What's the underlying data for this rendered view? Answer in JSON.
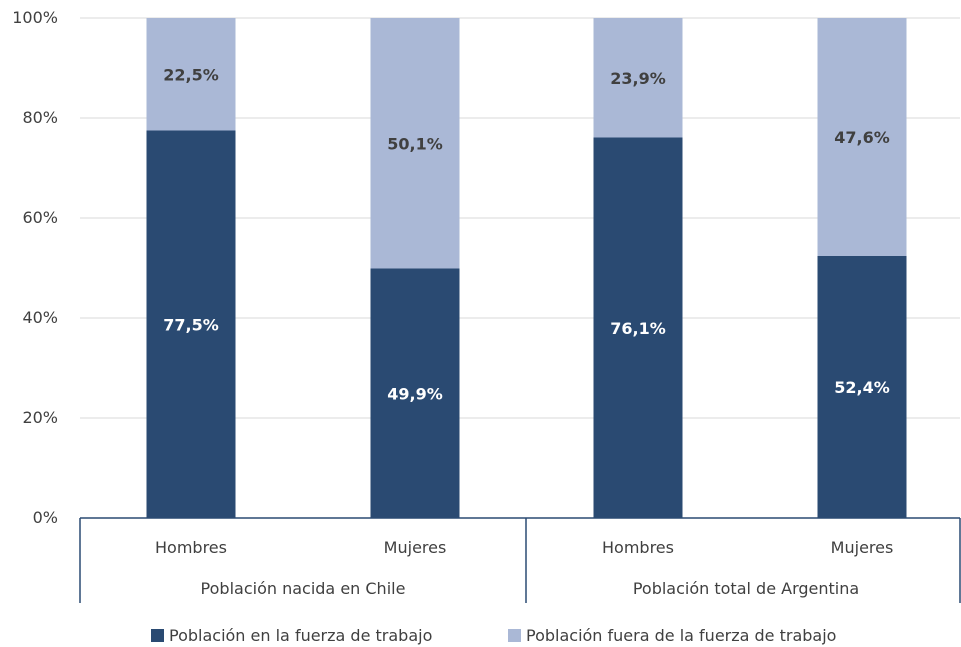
{
  "chart_data": {
    "type": "bar",
    "stacked": true,
    "groups": [
      "Población nacida en Chile",
      "Población total de Argentina"
    ],
    "categories": [
      "Hombres",
      "Mujeres",
      "Hombres",
      "Mujeres"
    ],
    "group_of_category": [
      0,
      0,
      1,
      1
    ],
    "series": [
      {
        "name": "Población en la fuerza de trabajo",
        "color": "#2a4a72",
        "label_color": "#ffffff",
        "values": [
          77.5,
          49.9,
          76.1,
          52.4
        ],
        "labels": [
          "77,5%",
          "49,9%",
          "76,1%",
          "52,4%"
        ]
      },
      {
        "name": "Población fuera de la fuerza de trabajo",
        "color": "#aab8d6",
        "label_color": "#404040",
        "values": [
          22.5,
          50.1,
          23.9,
          47.6
        ],
        "labels": [
          "22,5%",
          "50,1%",
          "23,9%",
          "47,6%"
        ]
      }
    ],
    "yticks": [
      "0%",
      "20%",
      "40%",
      "60%",
      "80%",
      "100%"
    ],
    "ylim": [
      0,
      100
    ],
    "grid": true,
    "legend_position": "bottom"
  }
}
